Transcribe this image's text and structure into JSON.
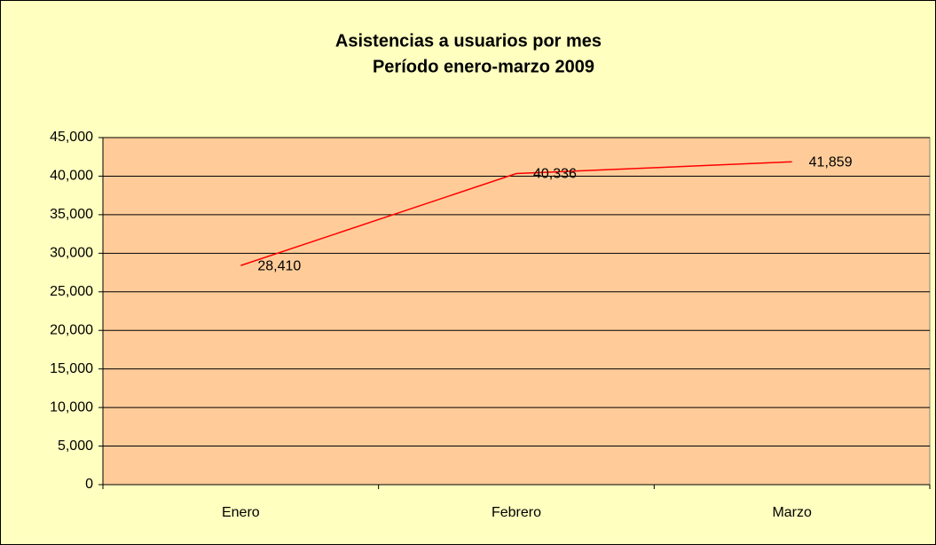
{
  "chart_data": {
    "type": "line",
    "title": "Asistencias a usuarios por mes",
    "subtitle": "Período enero-marzo 2009",
    "categories": [
      "Enero",
      "Febrero",
      "Marzo"
    ],
    "series": [
      {
        "name": null,
        "color": "#ff0000",
        "values": [
          28410,
          40336,
          41859
        ],
        "value_labels": [
          "28,410",
          "40,336",
          "41,859"
        ]
      }
    ],
    "ylim": [
      0,
      45000
    ],
    "yticks": [
      0,
      {
        "value": 5000,
        "label": "5,000"
      },
      {
        "value": 10000,
        "label": "10,000"
      },
      {
        "value": 15000,
        "label": "15,000"
      },
      {
        "value": 20000,
        "label": "20,000"
      },
      {
        "value": 25000,
        "label": "25,000"
      },
      {
        "value": 30000,
        "label": "30,000"
      },
      {
        "value": 35000,
        "label": "35,000"
      },
      {
        "value": 40000,
        "label": "40,000"
      },
      {
        "value": 45000,
        "label": "45,000"
      }
    ],
    "grid": true
  }
}
